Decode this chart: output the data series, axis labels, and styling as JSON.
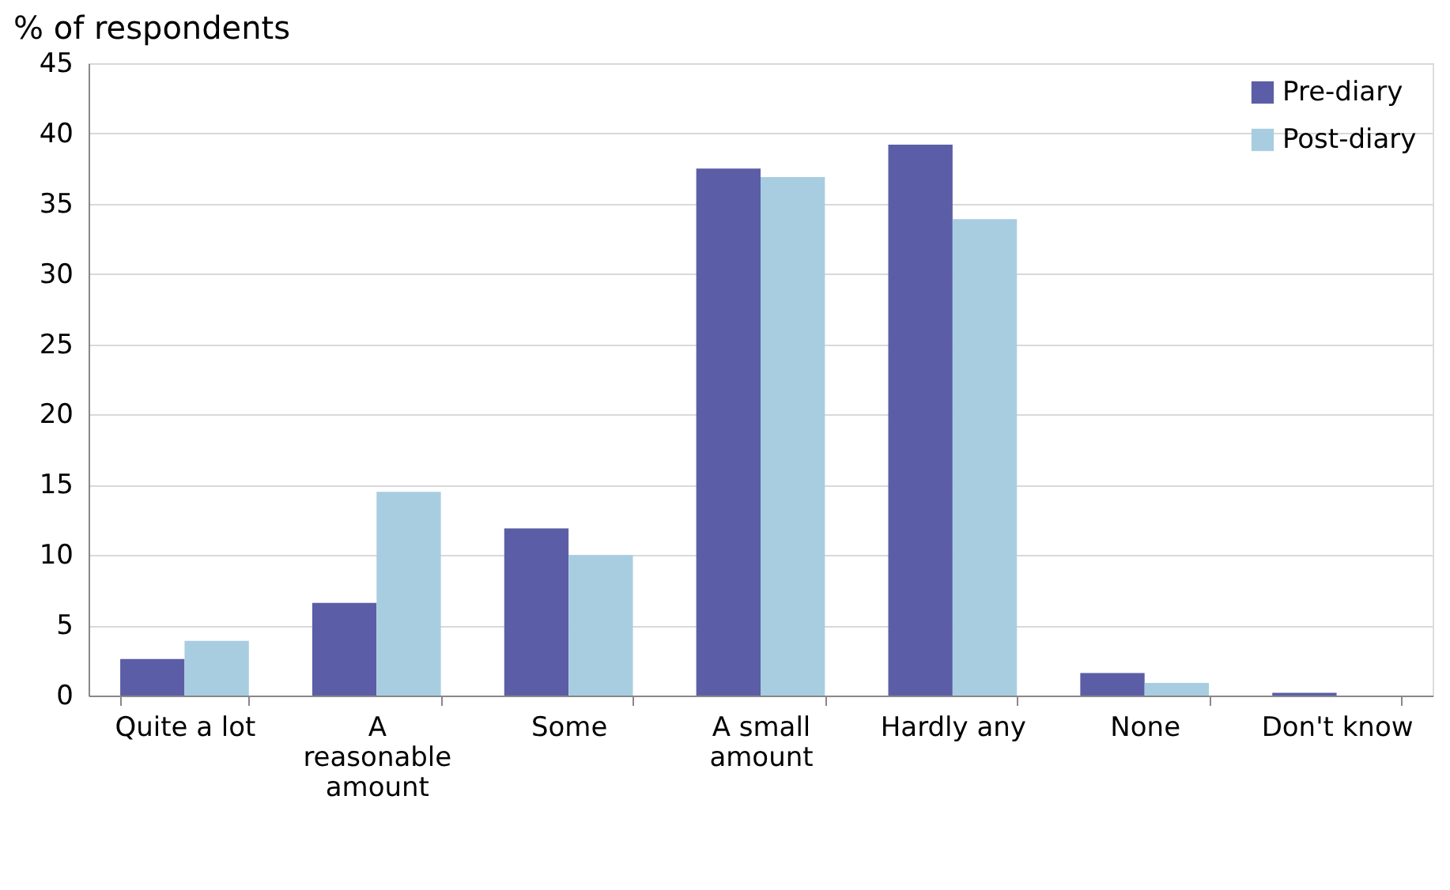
{
  "chart_data": {
    "type": "bar",
    "ylabel": "% of respondents",
    "categories": [
      "Quite a lot",
      "A reasonable amount",
      "Some",
      "A small amount",
      "Hardly any",
      "None",
      "Don't know"
    ],
    "series": [
      {
        "name": "Pre-diary",
        "color": "#5b5ea6",
        "values": [
          2.6,
          6.6,
          11.9,
          37.5,
          39.2,
          1.6,
          0.2
        ]
      },
      {
        "name": "Post-diary",
        "color": "#a8cde1",
        "values": [
          3.9,
          14.5,
          10.0,
          36.9,
          33.9,
          0.9,
          0
        ]
      }
    ],
    "ylim": [
      0,
      45
    ],
    "yticks": [
      0,
      5,
      10,
      15,
      20,
      25,
      30,
      35,
      40,
      45
    ],
    "grid": "y",
    "legend": "top right"
  }
}
